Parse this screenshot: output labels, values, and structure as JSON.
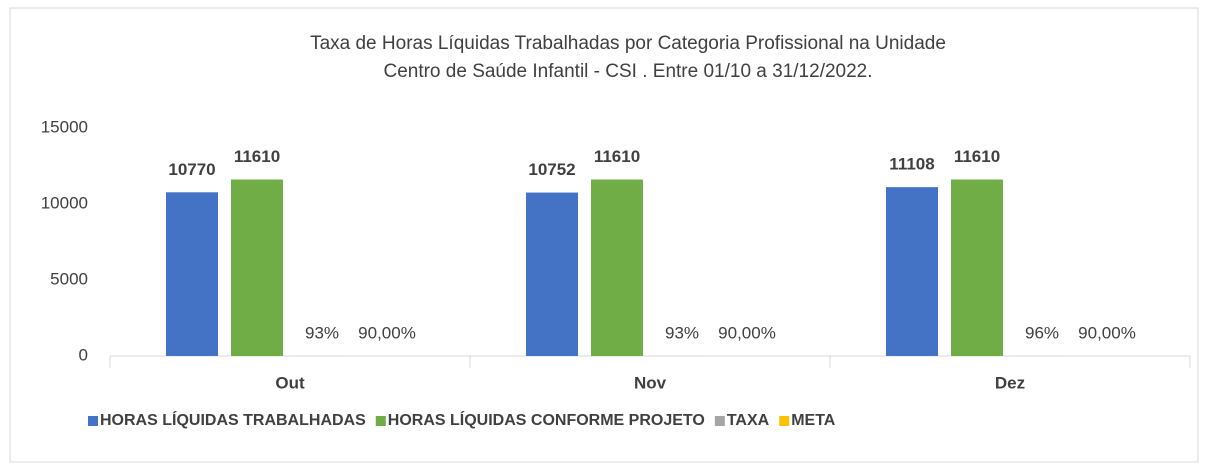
{
  "chart_data": {
    "type": "bar",
    "title": [
      "Taxa de Horas Líquidas Trabalhadas por Categoria Profissional na Unidade",
      "Centro de Saúde Infantil - CSI . Entre 01/10 a 31/12/2022."
    ],
    "categories": [
      "Out",
      "Nov",
      "Dez"
    ],
    "series": [
      {
        "name": "HORAS LÍQUIDAS TRABALHADAS",
        "color": "#4472c4",
        "values": [
          10770,
          10752,
          11108
        ],
        "label_bold": true
      },
      {
        "name": "HORAS LÍQUIDAS CONFORME PROJETO",
        "color": "#70ad47",
        "values": [
          11610,
          11610,
          11610
        ],
        "label_bold": true
      },
      {
        "name": "TAXA",
        "color": "#a5a5a5",
        "values": [
          0.93,
          0.93,
          0.96
        ],
        "value_labels": [
          "93%",
          "93%",
          "96%"
        ],
        "label_bold": false
      },
      {
        "name": "META",
        "color": "#ffc000",
        "values": [
          0.9,
          0.9,
          0.9
        ],
        "value_labels": [
          "90,00%",
          "90,00%",
          "90,00%"
        ],
        "label_bold": false
      }
    ],
    "ylim": [
      0,
      15000
    ],
    "yticks": [
      0,
      5000,
      10000,
      15000
    ],
    "grid": false,
    "legend": "bottom"
  }
}
